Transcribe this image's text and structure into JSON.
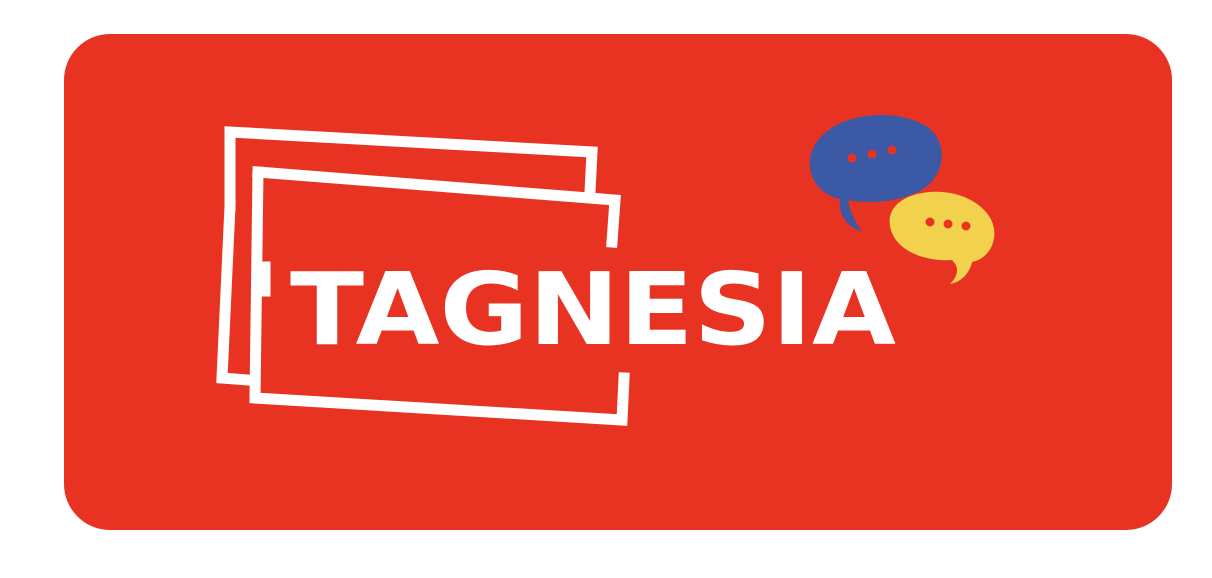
{
  "logo": {
    "wordmark": "TAGNESIA",
    "colors": {
      "background": "#ffffff",
      "panel": "#E83323",
      "frame": "#ffffff",
      "text": "#ffffff",
      "bubble_blue": "#3B59A5",
      "bubble_blue_dots": "#E83323",
      "bubble_yellow": "#F2D24C",
      "bubble_yellow_dots": "#E83323"
    },
    "icons": [
      "double-frame-icon",
      "blue-speech-bubble-icon",
      "yellow-speech-bubble-icon"
    ]
  }
}
